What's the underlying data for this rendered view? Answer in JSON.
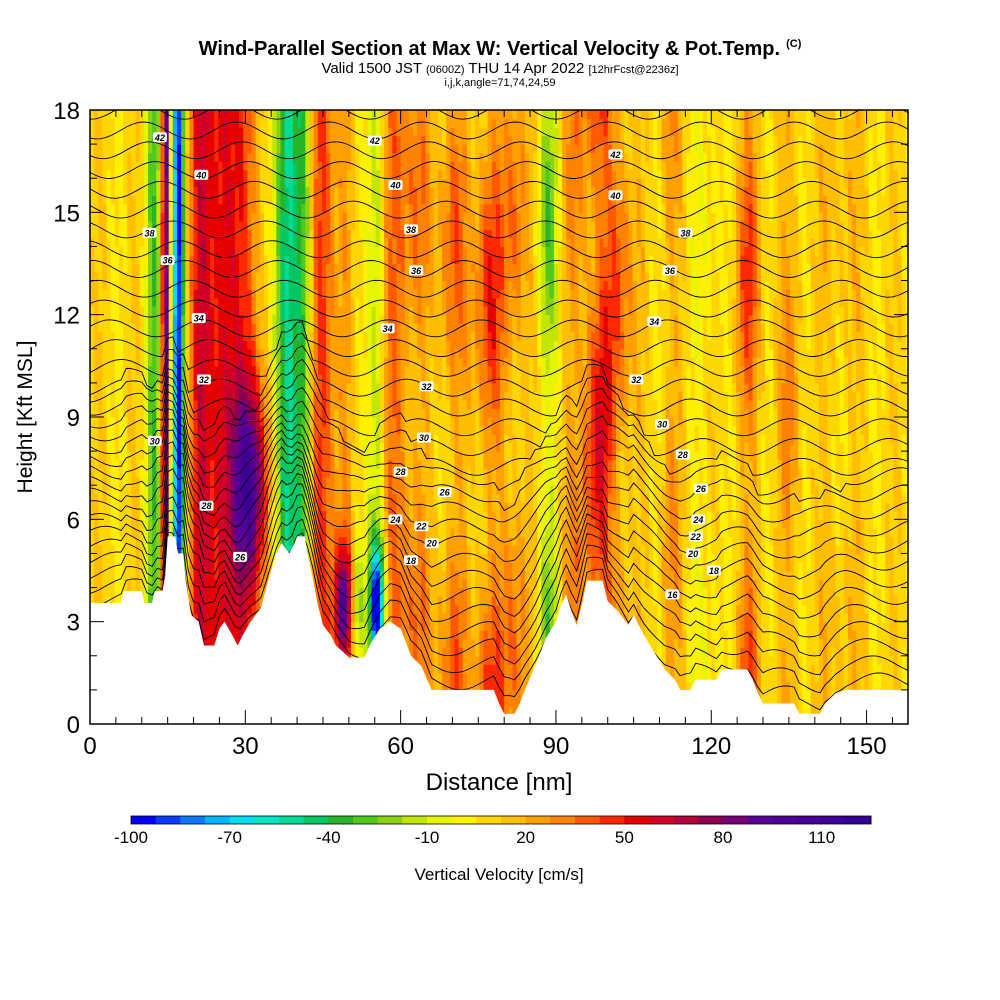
{
  "header": {
    "title": "Wind-Parallel Section at Max W: Vertical Velocity & Pot.Temp.",
    "copyright": "(C)",
    "valid_prefix": "Valid 1500 JST",
    "valid_utc": "(0600Z)",
    "valid_date": "THU 14 Apr 2022",
    "forecast": "[12hrFcst@2236z]",
    "params": "i,j,k,angle=71,74,24,59"
  },
  "chart_data": {
    "type": "heatmap",
    "xlabel": "Distance [nm]",
    "ylabel": "Height [Kft MSL]",
    "xlim": [
      0,
      158
    ],
    "ylim": [
      0,
      18
    ],
    "xticks": [
      0,
      30,
      60,
      90,
      120,
      150
    ],
    "yticks": [
      0,
      3,
      6,
      9,
      12,
      15,
      18
    ],
    "colorbar": {
      "label": "Vertical Velocity [cm/s]",
      "min": -100,
      "max": 125,
      "step": 7.5,
      "tick_labels": [
        -100,
        -70,
        -40,
        -10,
        20,
        50,
        80,
        110
      ],
      "colors": [
        "#0000ff",
        "#0a3cff",
        "#0a78ff",
        "#00b4ff",
        "#00dcf0",
        "#00e6c8",
        "#00dc96",
        "#00c864",
        "#28b428",
        "#50c81e",
        "#8cd214",
        "#c3e600",
        "#e6f500",
        "#fff000",
        "#ffd700",
        "#ffbe00",
        "#ffa000",
        "#ff8200",
        "#ff5a00",
        "#ff2800",
        "#e60000",
        "#d20028",
        "#b4003c",
        "#8c0050",
        "#780078",
        "#5a0096",
        "#500096",
        "#460096",
        "#3c0096",
        "#320096"
      ]
    },
    "velocity_features": [
      {
        "x": 12.5,
        "w": 1.6,
        "v": -35
      },
      {
        "x": 14.7,
        "w": 0.9,
        "v": 90
      },
      {
        "x": 16.1,
        "w": 0.9,
        "v": -65
      },
      {
        "x": 17.3,
        "w": 0.8,
        "v": -90
      },
      {
        "x": 21,
        "w": 2,
        "v": 45
      },
      {
        "x": 26,
        "w": 3.5,
        "v": 50
      },
      {
        "x": 31,
        "w": 3.5,
        "v": 72
      },
      {
        "x": 38,
        "w": 2.5,
        "v": -60
      },
      {
        "x": 41.5,
        "w": 1.5,
        "v": -30
      },
      {
        "x": 45,
        "w": 2.5,
        "v": 35
      },
      {
        "x": 49,
        "w": 1.8,
        "v": 70
      },
      {
        "x": 51.5,
        "w": 1.3,
        "v": -30
      },
      {
        "x": 55.5,
        "w": 1.5,
        "v": -95
      },
      {
        "x": 59,
        "w": 2.5,
        "v": 25
      },
      {
        "x": 63,
        "w": 3,
        "v": 25
      },
      {
        "x": 70,
        "w": 3,
        "v": 30
      },
      {
        "x": 77,
        "w": 3,
        "v": 40
      },
      {
        "x": 82,
        "w": 2.5,
        "v": 30
      },
      {
        "x": 88.5,
        "w": 2,
        "v": -35
      },
      {
        "x": 94,
        "w": 3,
        "v": 20
      },
      {
        "x": 98,
        "w": 3,
        "v": 45
      },
      {
        "x": 102,
        "w": 3,
        "v": 35
      },
      {
        "x": 112,
        "w": 2,
        "v": 20
      },
      {
        "x": 120,
        "w": 3,
        "v": -10
      },
      {
        "x": 127,
        "w": 2.5,
        "v": 35
      },
      {
        "x": 135,
        "w": 2.5,
        "v": 20
      },
      {
        "x": 145,
        "w": 4,
        "v": 10
      }
    ],
    "terrain_kft": [
      [
        0,
        3.55
      ],
      [
        6,
        3.55
      ],
      [
        6.5,
        3.9
      ],
      [
        10,
        3.9
      ],
      [
        10.5,
        3.55
      ],
      [
        12,
        3.55
      ],
      [
        12.5,
        3.9
      ],
      [
        14,
        3.9
      ],
      [
        14.5,
        4.3
      ],
      [
        15,
        5.5
      ],
      [
        16.5,
        5.5
      ],
      [
        17,
        5.0
      ],
      [
        18,
        5.0
      ],
      [
        18.5,
        4.2
      ],
      [
        19.5,
        3.2
      ],
      [
        21,
        3.0
      ],
      [
        22,
        2.3
      ],
      [
        24,
        2.3
      ],
      [
        25,
        2.8
      ],
      [
        26,
        3.0
      ],
      [
        27.5,
        2.6
      ],
      [
        28.5,
        2.3
      ],
      [
        29.5,
        2.6
      ],
      [
        31,
        3.0
      ],
      [
        33,
        3.4
      ],
      [
        35,
        4.5
      ],
      [
        36,
        5.0
      ],
      [
        37,
        5.3
      ],
      [
        38.5,
        5.0
      ],
      [
        39.5,
        5.3
      ],
      [
        40,
        5.5
      ],
      [
        41.5,
        5.5
      ],
      [
        42,
        5.0
      ],
      [
        43,
        4.3
      ],
      [
        44,
        3.5
      ],
      [
        45,
        2.9
      ],
      [
        46.5,
        2.6
      ],
      [
        47.5,
        2.3
      ],
      [
        49,
        2.1
      ],
      [
        50,
        1.95
      ],
      [
        53,
        1.95
      ],
      [
        54,
        2.3
      ],
      [
        56,
        2.8
      ],
      [
        58,
        3.0
      ],
      [
        60,
        2.8
      ],
      [
        61,
        2.4
      ],
      [
        62,
        2.0
      ],
      [
        64,
        1.7
      ],
      [
        66,
        1.0
      ],
      [
        78,
        1.0
      ],
      [
        79,
        0.6
      ],
      [
        80,
        0.3
      ],
      [
        82,
        0.3
      ],
      [
        83,
        0.6
      ],
      [
        84,
        1.0
      ],
      [
        86,
        1.7
      ],
      [
        88,
        2.5
      ],
      [
        90,
        3.0
      ],
      [
        91,
        3.5
      ],
      [
        92,
        3.8
      ],
      [
        93,
        3.3
      ],
      [
        94,
        2.9
      ],
      [
        95,
        3.5
      ],
      [
        96,
        4.2
      ],
      [
        99,
        4.2
      ],
      [
        100,
        3.6
      ],
      [
        102,
        3.3
      ],
      [
        104,
        2.9
      ],
      [
        105,
        3.2
      ],
      [
        107,
        2.6
      ],
      [
        109,
        2.1
      ],
      [
        111,
        1.6
      ],
      [
        113,
        1.3
      ],
      [
        114,
        1.0
      ],
      [
        116,
        1.0
      ],
      [
        117,
        1.3
      ],
      [
        121,
        1.3
      ],
      [
        122,
        1.6
      ],
      [
        127,
        1.6
      ],
      [
        128,
        1.3
      ],
      [
        129,
        0.9
      ],
      [
        130,
        0.6
      ],
      [
        136,
        0.6
      ],
      [
        137,
        0.3
      ],
      [
        141,
        0.3
      ],
      [
        142,
        0.6
      ],
      [
        144,
        0.9
      ],
      [
        146,
        1.0
      ],
      [
        158,
        1.0
      ]
    ],
    "theta_contours": {
      "min": 12,
      "max": 43,
      "step": 1
    },
    "theta_labels": [
      {
        "x": 13.5,
        "y": 17.2,
        "t": "42"
      },
      {
        "x": 21.5,
        "y": 16.1,
        "t": "40"
      },
      {
        "x": 11.5,
        "y": 14.4,
        "t": "38"
      },
      {
        "x": 15,
        "y": 13.6,
        "t": "36"
      },
      {
        "x": 21,
        "y": 11.9,
        "t": "34"
      },
      {
        "x": 22,
        "y": 10.1,
        "t": "32"
      },
      {
        "x": 12.5,
        "y": 8.3,
        "t": "30"
      },
      {
        "x": 22.5,
        "y": 6.4,
        "t": "28"
      },
      {
        "x": 29,
        "y": 4.9,
        "t": "26"
      },
      {
        "x": 55,
        "y": 17.1,
        "t": "42"
      },
      {
        "x": 59,
        "y": 15.8,
        "t": "40"
      },
      {
        "x": 62,
        "y": 14.5,
        "t": "38"
      },
      {
        "x": 63,
        "y": 13.3,
        "t": "36"
      },
      {
        "x": 57.5,
        "y": 11.6,
        "t": "34"
      },
      {
        "x": 65,
        "y": 9.9,
        "t": "32"
      },
      {
        "x": 64.5,
        "y": 8.4,
        "t": "30"
      },
      {
        "x": 60,
        "y": 7.4,
        "t": "28"
      },
      {
        "x": 68.5,
        "y": 6.8,
        "t": "26"
      },
      {
        "x": 59,
        "y": 6.0,
        "t": "24"
      },
      {
        "x": 64,
        "y": 5.8,
        "t": "22"
      },
      {
        "x": 66,
        "y": 5.3,
        "t": "20"
      },
      {
        "x": 62,
        "y": 4.8,
        "t": "18"
      },
      {
        "x": 101.5,
        "y": 16.7,
        "t": "42"
      },
      {
        "x": 101.5,
        "y": 15.5,
        "t": "40"
      },
      {
        "x": 115,
        "y": 14.4,
        "t": "38"
      },
      {
        "x": 112,
        "y": 13.3,
        "t": "36"
      },
      {
        "x": 109,
        "y": 11.8,
        "t": "34"
      },
      {
        "x": 105.5,
        "y": 10.1,
        "t": "32"
      },
      {
        "x": 110.5,
        "y": 8.8,
        "t": "30"
      },
      {
        "x": 114.5,
        "y": 7.9,
        "t": "28"
      },
      {
        "x": 118,
        "y": 6.9,
        "t": "26"
      },
      {
        "x": 117.5,
        "y": 6.0,
        "t": "24"
      },
      {
        "x": 117,
        "y": 5.5,
        "t": "22"
      },
      {
        "x": 116.5,
        "y": 5.0,
        "t": "20"
      },
      {
        "x": 120.5,
        "y": 4.5,
        "t": "18"
      },
      {
        "x": 112.5,
        "y": 3.8,
        "t": "16"
      }
    ]
  }
}
